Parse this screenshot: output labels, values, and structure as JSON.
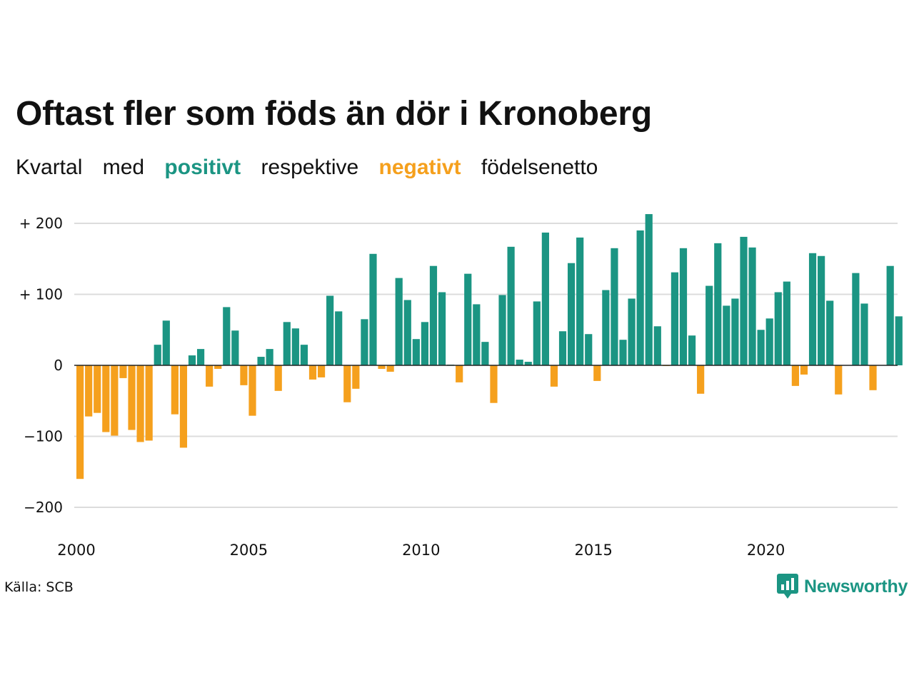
{
  "title": "Oftast fler som föds än dör i Kronoberg",
  "subtitle": {
    "w1": "Kvartal",
    "w2": "med",
    "positive_word": "positivt",
    "w3": "respektive",
    "negative_word": "negativt",
    "w4": "födelsenetto"
  },
  "source": "Källa: SCB",
  "brand": "Newsworthy",
  "icon": "newsworthy-logo-icon",
  "colors": {
    "positive": "#1b9583",
    "negative": "#f5a01d",
    "grid": "#dcdcdc",
    "zero_line": "#222222"
  },
  "chart_data": {
    "type": "bar",
    "x_ticks": [
      "2000",
      "2005",
      "2010",
      "2015",
      "2020"
    ],
    "y_ticks": [
      {
        "value": 200,
        "label": "+ 200"
      },
      {
        "value": 100,
        "label": "+ 100"
      },
      {
        "value": 0,
        "label": "0"
      },
      {
        "value": -100,
        "label": "−100"
      },
      {
        "value": -200,
        "label": "−200"
      }
    ],
    "ylim": [
      -240,
      220
    ],
    "grid": true,
    "start": "2000 Q1",
    "values": [
      -160,
      -72,
      -67,
      -94,
      -99,
      -18,
      -91,
      -108,
      -106,
      29,
      63,
      -69,
      -116,
      14,
      23,
      -30,
      -5,
      82,
      49,
      -28,
      -71,
      12,
      23,
      -36,
      61,
      52,
      29,
      -20,
      -17,
      98,
      76,
      -52,
      -33,
      65,
      157,
      -5,
      -9,
      123,
      92,
      37,
      61,
      140,
      103,
      1,
      -24,
      129,
      86,
      33,
      -53,
      99,
      167,
      8,
      5,
      90,
      187,
      -30,
      48,
      144,
      180,
      44,
      -22,
      106,
      165,
      36,
      94,
      190,
      213,
      55,
      -1,
      131,
      165,
      42,
      -40,
      112,
      172,
      84,
      94,
      181,
      166,
      50,
      66,
      103,
      118,
      -29,
      -13,
      158,
      154,
      91,
      -41,
      0,
      130,
      87,
      -35,
      0,
      140,
      69
    ]
  }
}
